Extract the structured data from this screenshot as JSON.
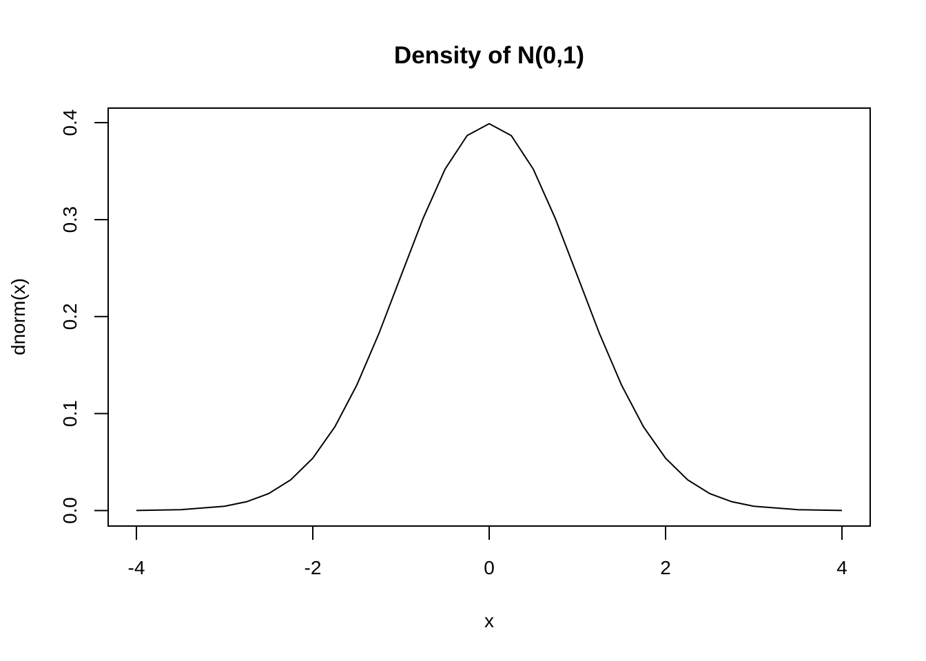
{
  "chart_data": {
    "type": "line",
    "title": "Density of N(0,1)",
    "xlabel": "x",
    "ylabel": "dnorm(x)",
    "xlim": [
      -4.32,
      4.32
    ],
    "ylim": [
      -0.016,
      0.415
    ],
    "x_ticks": [
      {
        "value": -4,
        "label": "-4"
      },
      {
        "value": -2,
        "label": "-2"
      },
      {
        "value": 0,
        "label": "0"
      },
      {
        "value": 2,
        "label": "2"
      },
      {
        "value": 4,
        "label": "4"
      }
    ],
    "y_ticks": [
      {
        "value": 0.0,
        "label": "0.0"
      },
      {
        "value": 0.1,
        "label": "0.1"
      },
      {
        "value": 0.2,
        "label": "0.2"
      },
      {
        "value": 0.3,
        "label": "0.3"
      },
      {
        "value": 0.4,
        "label": "0.4"
      }
    ],
    "grid": false,
    "series": [
      {
        "x": [
          -4.0,
          -3.5,
          -3.0,
          -2.75,
          -2.5,
          -2.25,
          -2.0,
          -1.75,
          -1.5,
          -1.25,
          -1.0,
          -0.75,
          -0.5,
          -0.25,
          0.0,
          0.25,
          0.5,
          0.75,
          1.0,
          1.25,
          1.5,
          1.75,
          2.0,
          2.25,
          2.5,
          2.75,
          3.0,
          3.5,
          4.0
        ],
        "y": [
          0.0001,
          0.0009,
          0.0044,
          0.0091,
          0.0175,
          0.0317,
          0.054,
          0.0863,
          0.1295,
          0.1826,
          0.242,
          0.3011,
          0.3521,
          0.3867,
          0.3989,
          0.3867,
          0.3521,
          0.3011,
          0.242,
          0.1826,
          0.1295,
          0.0863,
          0.054,
          0.0317,
          0.0175,
          0.0091,
          0.0044,
          0.0009,
          0.0001
        ]
      }
    ]
  }
}
